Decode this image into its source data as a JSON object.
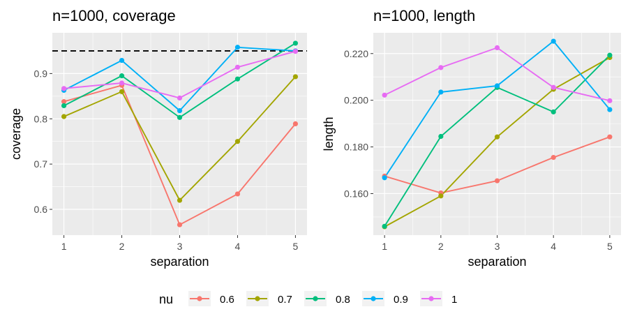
{
  "legend": {
    "title": "nu",
    "position": "bottom"
  },
  "chart_data": [
    {
      "type": "line",
      "title": "n=1000, coverage",
      "xlabel": "separation",
      "ylabel": "coverage",
      "x": [
        1,
        2,
        3,
        4,
        5
      ],
      "xlim": [
        0.8,
        5.2
      ],
      "ylim": [
        0.543,
        0.99
      ],
      "yticks": [
        0.6,
        0.7,
        0.8,
        0.9
      ],
      "ytick_labels": [
        "0.6",
        "0.7",
        "0.8",
        "0.9"
      ],
      "yminor": [
        0.65,
        0.75,
        0.85,
        0.95
      ],
      "reference_line": {
        "y": 0.95,
        "style": "dashed",
        "color": "#000000"
      },
      "grid": true,
      "series": [
        {
          "name": "0.6",
          "color": "#F8766D",
          "values": [
            0.838,
            0.874,
            0.566,
            0.634,
            0.789
          ]
        },
        {
          "name": "0.7",
          "color": "#A3A500",
          "values": [
            0.805,
            0.86,
            0.62,
            0.75,
            0.893
          ]
        },
        {
          "name": "0.8",
          "color": "#00BF7D",
          "values": [
            0.829,
            0.895,
            0.803,
            0.888,
            0.967
          ]
        },
        {
          "name": "0.9",
          "color": "#00B0F6",
          "values": [
            0.863,
            0.929,
            0.818,
            0.958,
            0.95
          ]
        },
        {
          "name": "1",
          "color": "#E76BF3",
          "values": [
            0.867,
            0.879,
            0.846,
            0.914,
            0.949
          ]
        }
      ]
    },
    {
      "type": "line",
      "title": "n=1000, length",
      "xlabel": "separation",
      "ylabel": "length",
      "x": [
        1,
        2,
        3,
        4,
        5
      ],
      "xlim": [
        0.8,
        5.2
      ],
      "ylim": [
        0.1422,
        0.2289
      ],
      "yticks": [
        0.16,
        0.18,
        0.2,
        0.22
      ],
      "ytick_labels": [
        "0.160",
        "0.180",
        "0.200",
        "0.220"
      ],
      "yminor": [
        0.15,
        0.17,
        0.19,
        0.21
      ],
      "grid": true,
      "series": [
        {
          "name": "0.6",
          "color": "#F8766D",
          "values": [
            0.1675,
            0.1603,
            0.1655,
            0.1755,
            0.1843
          ]
        },
        {
          "name": "0.7",
          "color": "#A3A500",
          "values": [
            0.1458,
            0.159,
            0.1843,
            0.2047,
            0.2183
          ]
        },
        {
          "name": "0.8",
          "color": "#00BF7D",
          "values": [
            0.146,
            0.1845,
            0.2055,
            0.195,
            0.2193
          ]
        },
        {
          "name": "0.9",
          "color": "#00B0F6",
          "values": [
            0.1668,
            0.2035,
            0.2062,
            0.2253,
            0.196
          ]
        },
        {
          "name": "1",
          "color": "#E76BF3",
          "values": [
            0.2022,
            0.214,
            0.2225,
            0.2055,
            0.1998
          ]
        }
      ]
    }
  ]
}
